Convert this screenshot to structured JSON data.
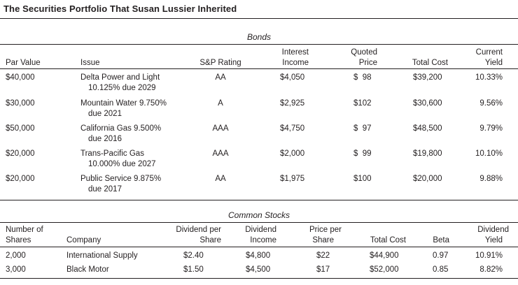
{
  "title": "The Securities Portfolio That Susan Lussier Inherited",
  "bonds": {
    "section_title": "Bonds",
    "headers": {
      "par_value": "Par Value",
      "issue": "Issue",
      "sp_rating": "S&P Rating",
      "interest_1": "Interest",
      "interest_2": "Income",
      "quoted_1": "Quoted",
      "quoted_2": "Price",
      "total_cost": "Total Cost",
      "yield_1": "Current",
      "yield_2": "Yield"
    },
    "rows": [
      {
        "par": "$40,000",
        "issue_1": "Delta Power and Light",
        "issue_2": "10.125% due 2029",
        "rating": "AA",
        "income": "$4,050",
        "price": "$  98",
        "cost": "$39,200",
        "yield": "10.33%"
      },
      {
        "par": "$30,000",
        "issue_1": "Mountain Water 9.750%",
        "issue_2": "due 2021",
        "rating": "A",
        "income": "$2,925",
        "price": "$102",
        "cost": "$30,600",
        "yield": "9.56%"
      },
      {
        "par": "$50,000",
        "issue_1": "California Gas 9.500%",
        "issue_2": "due 2016",
        "rating": "AAA",
        "income": "$4,750",
        "price": "$  97",
        "cost": "$48,500",
        "yield": "9.79%"
      },
      {
        "par": "$20,000",
        "issue_1": "Trans-Pacific Gas",
        "issue_2": "10.000% due 2027",
        "rating": "AAA",
        "income": "$2,000",
        "price": "$  99",
        "cost": "$19,800",
        "yield": "10.10%"
      },
      {
        "par": "$20,000",
        "issue_1": "Public Service 9.875%",
        "issue_2": "due 2017",
        "rating": "AA",
        "income": "$1,975",
        "price": "$100",
        "cost": "$20,000",
        "yield": "9.88%"
      }
    ]
  },
  "stocks": {
    "section_title": "Common Stocks",
    "headers": {
      "shares_1": "Number of",
      "shares_2": "Shares",
      "company": "Company",
      "dps_1": "Dividend per",
      "dps_2": "Share",
      "div_1": "Dividend",
      "div_2": "Income",
      "pps_1": "Price per",
      "pps_2": "Share",
      "total_cost": "Total Cost",
      "beta": "Beta",
      "dy_1": "Dividend",
      "dy_2": "Yield"
    },
    "rows": [
      {
        "shares": "2,000",
        "company": "International Supply",
        "dps": "$2.40",
        "div": "$4,800",
        "pps": "$22",
        "cost": "$44,900",
        "beta": "0.97",
        "yield": "10.91%"
      },
      {
        "shares": "3,000",
        "company": "Black Motor",
        "dps": "$1.50",
        "div": "$4,500",
        "pps": "$17",
        "cost": "$52,000",
        "beta": "0.85",
        "yield": "8.82%"
      }
    ]
  }
}
